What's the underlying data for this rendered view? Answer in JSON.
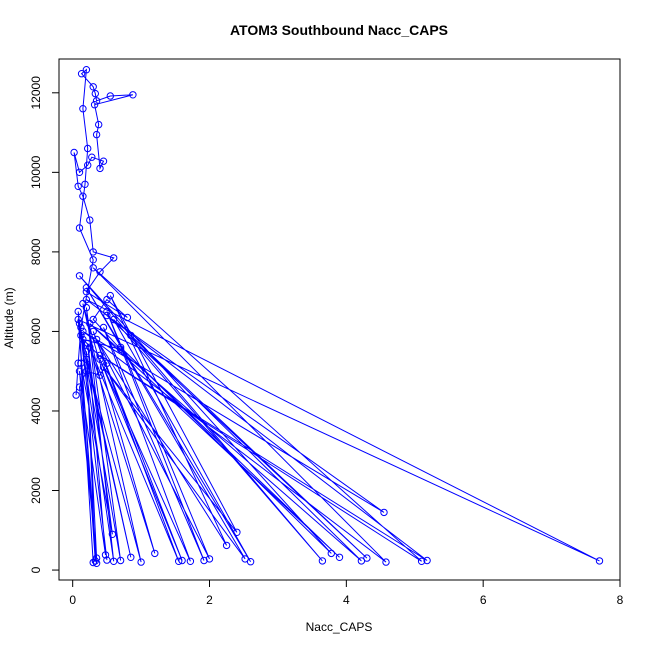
{
  "chart_data": {
    "type": "line",
    "title": "ATOM3 Southbound Nacc_CAPS",
    "xlabel": "Nacc_CAPS",
    "ylabel": "Altitude (m)",
    "xlim": [
      -0.2,
      8.0
    ],
    "ylim": [
      -250,
      12850
    ],
    "xticks": [
      0,
      2,
      4,
      6,
      8
    ],
    "yticks": [
      0,
      2000,
      4000,
      6000,
      8000,
      10000,
      12000
    ],
    "grid": false,
    "legend": "none",
    "series": [
      {
        "color": "#0000ff",
        "marker": "open-circle",
        "points": [
          [
            0.05,
            4400
          ],
          [
            0.08,
            5200
          ],
          [
            0.12,
            6100
          ],
          [
            0.3,
            7800
          ],
          [
            0.1,
            8600
          ],
          [
            0.18,
            9700
          ],
          [
            0.22,
            10600
          ],
          [
            0.15,
            11600
          ],
          [
            0.2,
            12580
          ],
          [
            0.13,
            12480
          ],
          [
            0.3,
            12150
          ],
          [
            0.33,
            11980
          ],
          [
            0.35,
            11800
          ],
          [
            0.55,
            11920
          ],
          [
            0.88,
            11950
          ],
          [
            0.32,
            11700
          ],
          [
            0.38,
            11200
          ],
          [
            0.35,
            10950
          ],
          [
            0.4,
            10100
          ],
          [
            0.45,
            10280
          ],
          [
            0.28,
            10380
          ],
          [
            0.22,
            10180
          ],
          [
            0.1,
            10000
          ],
          [
            0.02,
            10500
          ],
          [
            0.08,
            9650
          ],
          [
            0.15,
            9400
          ],
          [
            0.25,
            8800
          ],
          [
            0.3,
            8000
          ],
          [
            0.6,
            7850
          ],
          [
            0.4,
            7500
          ],
          [
            0.2,
            7000
          ],
          [
            0.8,
            6350
          ],
          [
            0.5,
            6800
          ],
          [
            0.3,
            6300
          ],
          [
            0.7,
            5550
          ],
          [
            0.15,
            5800
          ],
          [
            0.5,
            5200
          ],
          [
            0.4,
            4900
          ],
          [
            0.2,
            5000
          ],
          [
            0.1,
            4600
          ],
          [
            0.35,
            300
          ],
          [
            0.2,
            5500
          ],
          [
            0.33,
            230
          ],
          [
            0.08,
            6500
          ],
          [
            0.5,
            250
          ],
          [
            0.12,
            5900
          ],
          [
            0.6,
            220
          ],
          [
            0.2,
            6600
          ],
          [
            0.7,
            240
          ],
          [
            0.1,
            6200
          ],
          [
            0.85,
            320
          ],
          [
            0.2,
            5300
          ],
          [
            1.0,
            200
          ],
          [
            0.15,
            6700
          ],
          [
            1.2,
            420
          ],
          [
            0.25,
            5600
          ],
          [
            1.55,
            220
          ],
          [
            0.3,
            6000
          ],
          [
            1.6,
            240
          ],
          [
            0.4,
            5300
          ],
          [
            1.72,
            220
          ],
          [
            0.45,
            6100
          ],
          [
            1.92,
            240
          ],
          [
            0.5,
            6500
          ],
          [
            2.0,
            280
          ],
          [
            0.35,
            5800
          ],
          [
            2.25,
            620
          ],
          [
            0.55,
            6900
          ],
          [
            2.4,
            950
          ],
          [
            0.45,
            5100
          ],
          [
            2.52,
            280
          ],
          [
            0.2,
            7100
          ],
          [
            2.6,
            210
          ],
          [
            0.6,
            6300
          ],
          [
            3.65,
            230
          ],
          [
            0.1,
            7400
          ],
          [
            3.78,
            420
          ],
          [
            0.7,
            5600
          ],
          [
            3.9,
            320
          ],
          [
            0.25,
            6200
          ],
          [
            4.22,
            230
          ],
          [
            0.85,
            5900
          ],
          [
            4.3,
            300
          ],
          [
            0.5,
            6400
          ],
          [
            4.55,
            1450
          ],
          [
            0.15,
            6000
          ],
          [
            4.58,
            200
          ],
          [
            0.3,
            7600
          ],
          [
            5.1,
            220
          ],
          [
            0.4,
            5400
          ],
          [
            5.18,
            240
          ],
          [
            0.2,
            6800
          ],
          [
            7.7,
            230
          ],
          [
            0.08,
            6300
          ],
          [
            0.35,
            170
          ],
          [
            0.1,
            5000
          ],
          [
            0.48,
            380
          ],
          [
            0.22,
            5700
          ],
          [
            0.58,
            900
          ],
          [
            0.12,
            5200
          ],
          [
            0.3,
            190
          ]
        ]
      }
    ]
  }
}
